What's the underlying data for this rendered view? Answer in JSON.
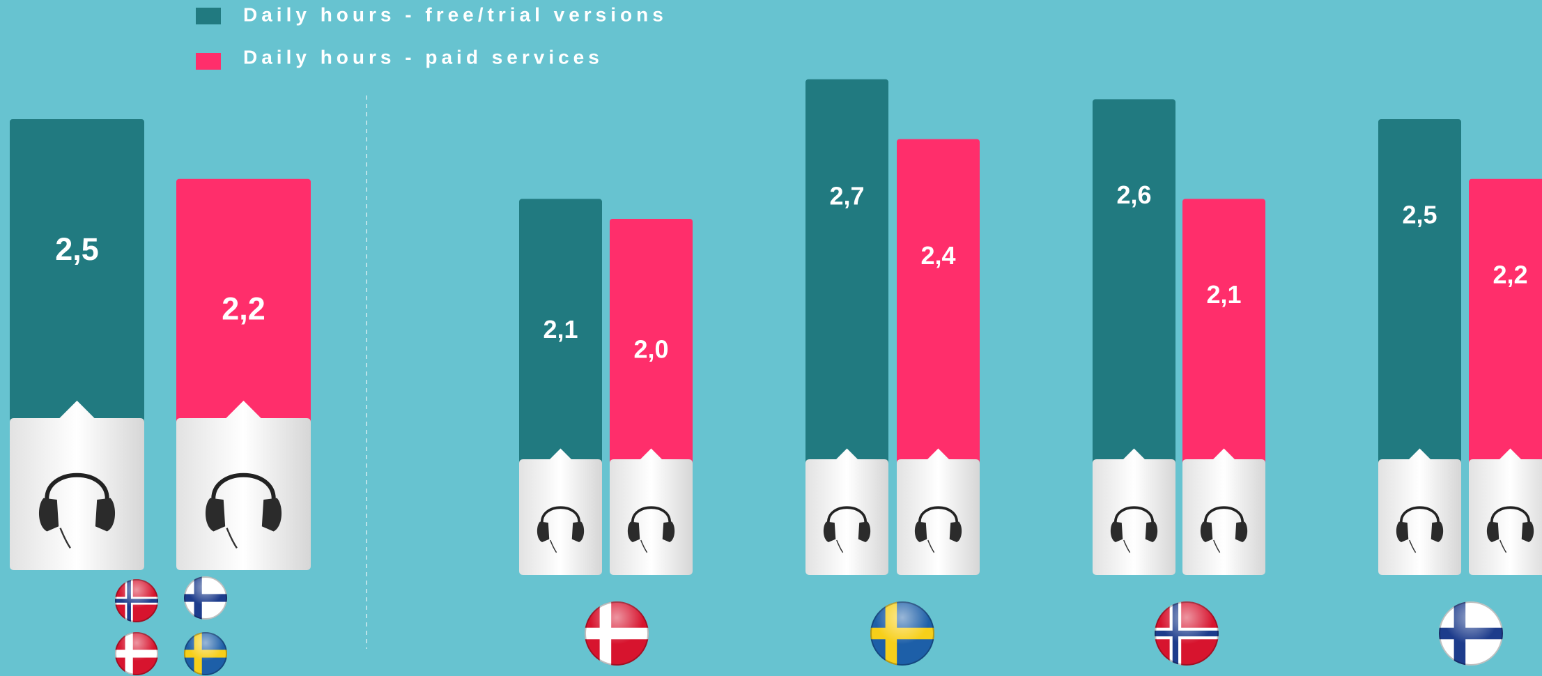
{
  "chart_data": {
    "type": "bar",
    "series": [
      {
        "name": "Daily hours - free/trial versions",
        "color": "#217a80",
        "values": [
          2.5,
          2.1,
          2.7,
          2.6,
          2.5
        ],
        "value_labels": [
          "2,5",
          "2,1",
          "2,7",
          "2,6",
          "2,5"
        ]
      },
      {
        "name": "Daily hours - paid services",
        "color": "#ff2e6b",
        "values": [
          2.2,
          2.0,
          2.4,
          2.1,
          2.2
        ],
        "value_labels": [
          "2,2",
          "2,0",
          "2,4",
          "2,1",
          "2,2"
        ]
      }
    ]
  }
}
